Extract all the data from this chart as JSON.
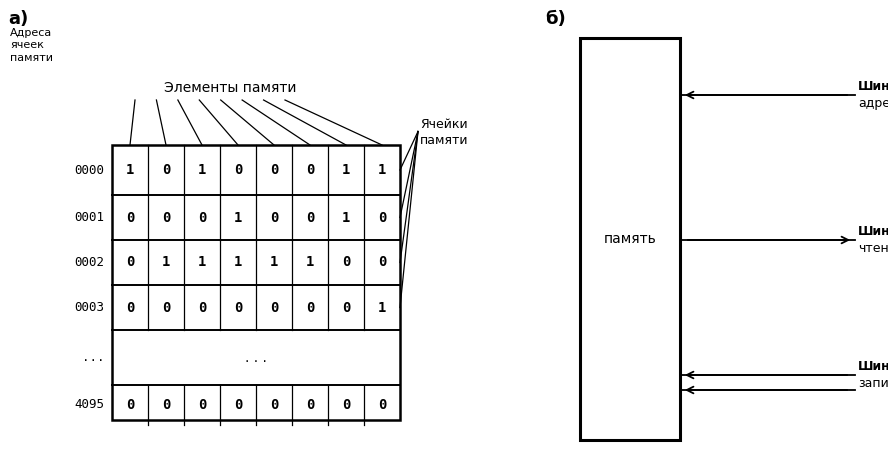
{
  "fig_width": 8.88,
  "fig_height": 4.68,
  "bg_color": "#ffffff",
  "part_a_label": "а)",
  "part_b_label": "б)",
  "addresses_label": "Адреса\nячеек\nпамяти",
  "elements_label": "Элементы памяти",
  "cells_label": "Ячейки\nпамяти",
  "memory_label": "память",
  "rows": [
    {
      "addr": "0000",
      "bits": [
        1,
        0,
        1,
        0,
        0,
        0,
        1,
        1
      ]
    },
    {
      "addr": "0001",
      "bits": [
        0,
        0,
        0,
        1,
        0,
        0,
        1,
        0
      ]
    },
    {
      "addr": "0002",
      "bits": [
        0,
        1,
        1,
        1,
        1,
        1,
        0,
        0
      ]
    },
    {
      "addr": "0003",
      "bits": [
        0,
        0,
        0,
        0,
        0,
        0,
        0,
        1
      ]
    },
    {
      "addr": "...",
      "bits": null
    },
    {
      "addr": "4095",
      "bits": [
        0,
        0,
        0,
        0,
        0,
        0,
        0,
        0
      ]
    }
  ],
  "font_color": "#000000",
  "line_color": "#000000"
}
